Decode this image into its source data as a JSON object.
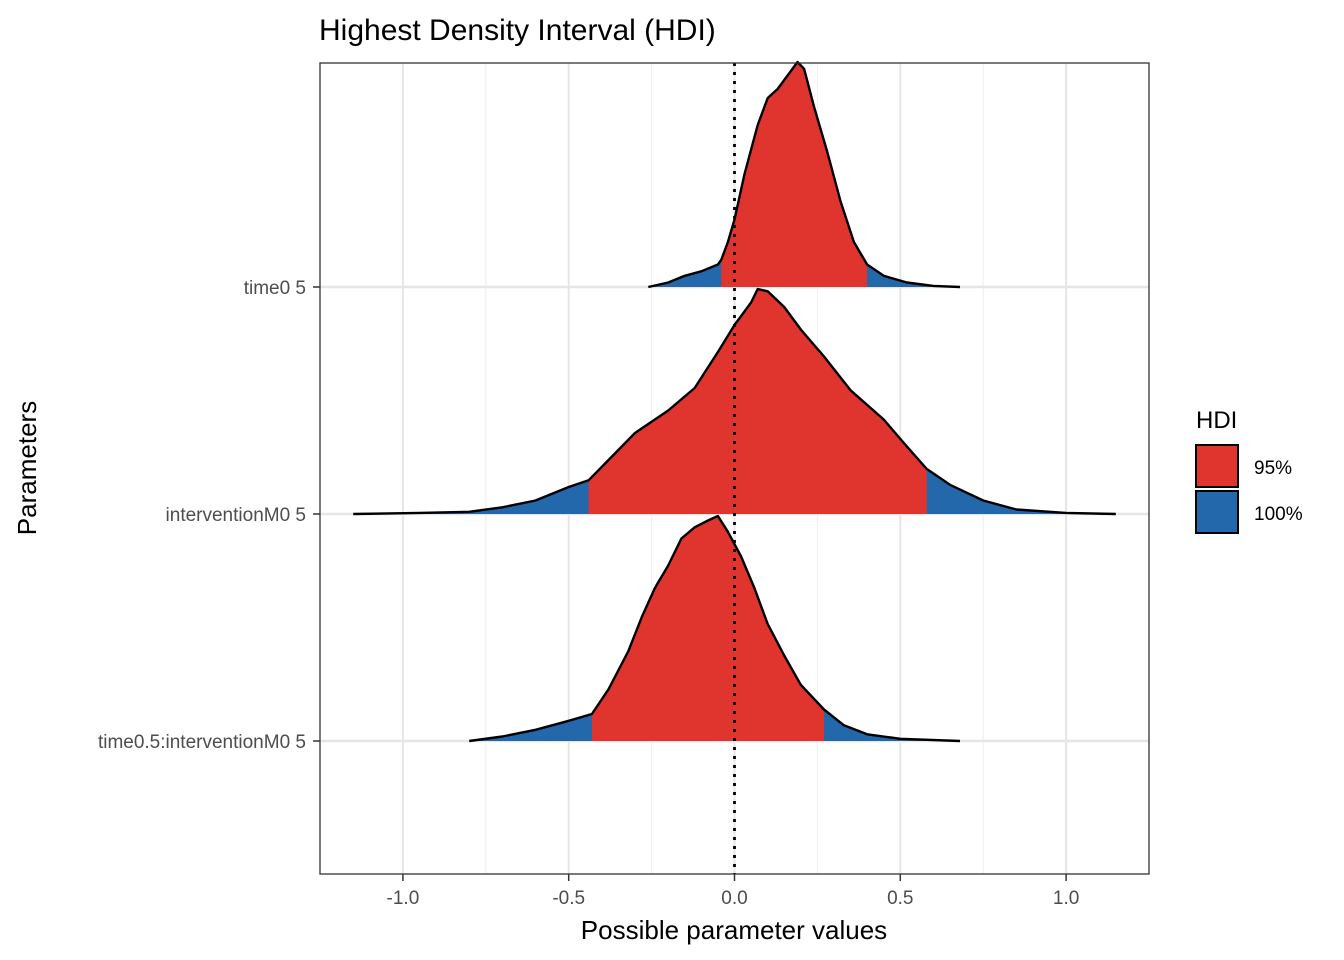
{
  "chart_data": {
    "type": "ridgeline",
    "title": "Highest Density Interval (HDI)",
    "xlabel": "Possible parameter values",
    "ylabel": "Parameters",
    "xlim": [
      -1.25,
      1.25
    ],
    "x_ticks": [
      -1.0,
      -0.5,
      0.0,
      0.5,
      1.0
    ],
    "x_tick_labels": [
      "-1.0",
      "-0.5",
      "0.0",
      "0.5",
      "1.0"
    ],
    "reference_line": {
      "x": 0,
      "style": "dotted"
    },
    "grid": true,
    "legend": {
      "title": "HDI",
      "position": "right",
      "items": [
        {
          "label": "95%",
          "color": "#e0342e"
        },
        {
          "label": "100%",
          "color": "#2268aa"
        }
      ]
    },
    "series": [
      {
        "name": "time0 5",
        "hdi95": [
          -0.04,
          0.4
        ],
        "range": [
          -0.26,
          0.68
        ],
        "density": [
          [
            -0.26,
            0.0
          ],
          [
            -0.2,
            0.02
          ],
          [
            -0.15,
            0.05
          ],
          [
            -0.1,
            0.07
          ],
          [
            -0.05,
            0.1
          ],
          [
            -0.04,
            0.12
          ],
          [
            -0.02,
            0.2
          ],
          [
            0.0,
            0.3
          ],
          [
            0.03,
            0.5
          ],
          [
            0.07,
            0.72
          ],
          [
            0.1,
            0.84
          ],
          [
            0.13,
            0.88
          ],
          [
            0.16,
            0.94
          ],
          [
            0.19,
            1.0
          ],
          [
            0.21,
            0.97
          ],
          [
            0.24,
            0.8
          ],
          [
            0.28,
            0.6
          ],
          [
            0.32,
            0.38
          ],
          [
            0.36,
            0.2
          ],
          [
            0.4,
            0.1
          ],
          [
            0.45,
            0.05
          ],
          [
            0.52,
            0.02
          ],
          [
            0.6,
            0.005
          ],
          [
            0.68,
            0.0
          ]
        ]
      },
      {
        "name": "interventionM0 5",
        "hdi95": [
          -0.44,
          0.58
        ],
        "range": [
          -1.15,
          1.15
        ],
        "density": [
          [
            -1.15,
            0.0
          ],
          [
            -0.95,
            0.005
          ],
          [
            -0.8,
            0.01
          ],
          [
            -0.7,
            0.03
          ],
          [
            -0.6,
            0.06
          ],
          [
            -0.5,
            0.12
          ],
          [
            -0.44,
            0.15
          ],
          [
            -0.38,
            0.24
          ],
          [
            -0.3,
            0.36
          ],
          [
            -0.2,
            0.46
          ],
          [
            -0.12,
            0.56
          ],
          [
            -0.05,
            0.72
          ],
          [
            0.0,
            0.84
          ],
          [
            0.05,
            0.94
          ],
          [
            0.07,
            1.0
          ],
          [
            0.1,
            0.99
          ],
          [
            0.15,
            0.92
          ],
          [
            0.2,
            0.82
          ],
          [
            0.27,
            0.7
          ],
          [
            0.35,
            0.55
          ],
          [
            0.45,
            0.42
          ],
          [
            0.52,
            0.3
          ],
          [
            0.58,
            0.2
          ],
          [
            0.65,
            0.13
          ],
          [
            0.75,
            0.06
          ],
          [
            0.85,
            0.02
          ],
          [
            1.0,
            0.005
          ],
          [
            1.15,
            0.0
          ]
        ]
      },
      {
        "name": "time0.5:interventionM0 5",
        "hdi95": [
          -0.43,
          0.27
        ],
        "range": [
          -0.8,
          0.68
        ],
        "density": [
          [
            -0.8,
            0.0
          ],
          [
            -0.7,
            0.02
          ],
          [
            -0.6,
            0.05
          ],
          [
            -0.5,
            0.09
          ],
          [
            -0.43,
            0.12
          ],
          [
            -0.38,
            0.23
          ],
          [
            -0.32,
            0.4
          ],
          [
            -0.28,
            0.55
          ],
          [
            -0.24,
            0.68
          ],
          [
            -0.2,
            0.78
          ],
          [
            -0.16,
            0.9
          ],
          [
            -0.12,
            0.95
          ],
          [
            -0.08,
            0.98
          ],
          [
            -0.05,
            1.0
          ],
          [
            -0.02,
            0.93
          ],
          [
            0.02,
            0.82
          ],
          [
            0.06,
            0.68
          ],
          [
            0.1,
            0.52
          ],
          [
            0.15,
            0.38
          ],
          [
            0.2,
            0.25
          ],
          [
            0.27,
            0.14
          ],
          [
            0.33,
            0.07
          ],
          [
            0.4,
            0.03
          ],
          [
            0.5,
            0.01
          ],
          [
            0.68,
            0.0
          ]
        ]
      }
    ]
  }
}
